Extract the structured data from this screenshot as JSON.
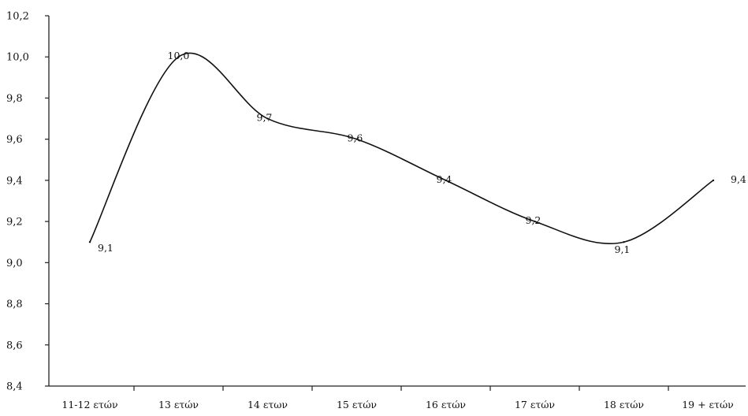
{
  "chart_data": {
    "type": "line",
    "title": "",
    "xlabel": "",
    "ylabel": "",
    "categories": [
      "11-12 ετών",
      "13 ετών",
      "14 ετων",
      "15 ετών",
      "16 ετών",
      "17 ετών",
      "18 ετών",
      "19 + ετών"
    ],
    "series": [
      {
        "values": [
          9.1,
          10.0,
          9.7,
          9.6,
          9.4,
          9.2,
          9.1,
          9.4
        ],
        "labels": [
          "9,1",
          "10,0",
          "9,7",
          "9,6",
          "9,4",
          "9,2",
          "9,1",
          "9,4"
        ]
      }
    ],
    "ylim": [
      8.4,
      10.2
    ],
    "yticks": [
      "8,4",
      "8,6",
      "8,8",
      "9,0",
      "9,2",
      "9,4",
      "9,6",
      "9,8",
      "10,0",
      "10,2"
    ],
    "grid": false,
    "smooth": true,
    "line_color": "#111111"
  }
}
